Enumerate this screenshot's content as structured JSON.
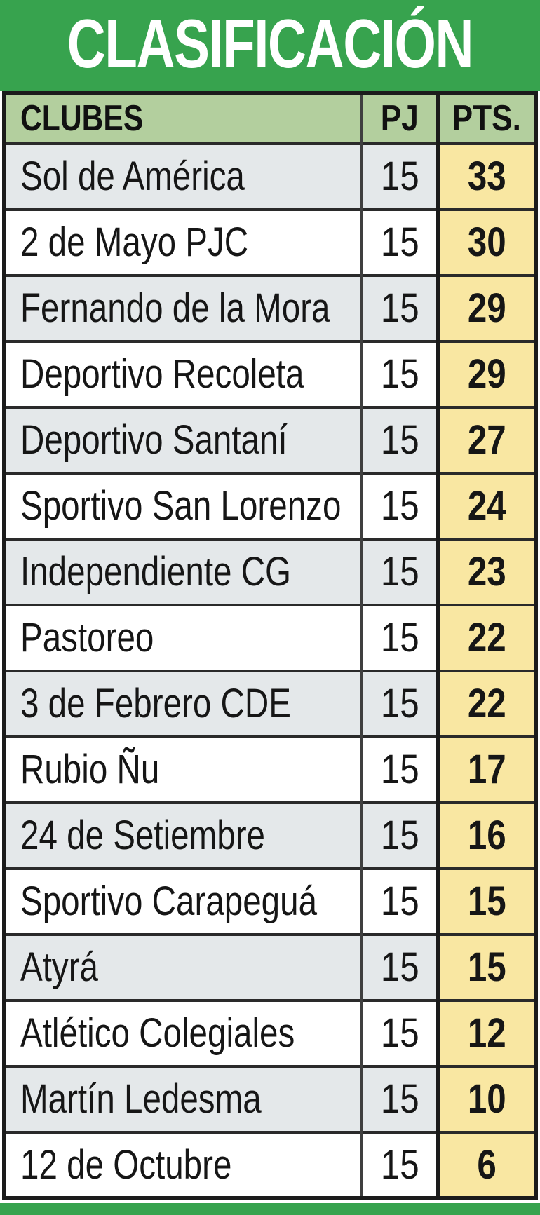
{
  "title": "CLASIFICACIÓN",
  "colors": {
    "header_green": "#37a34e",
    "column_header_green": "#b3cf9e",
    "row_alt_gray": "#e4e8ea",
    "row_white": "#ffffff",
    "pts_yellow": "#f9e7a2",
    "border_black": "#1b1b1b",
    "title_text": "#ffffff",
    "body_text": "#161616"
  },
  "chart_data": {
    "type": "table",
    "title": "CLASIFICACIÓN",
    "columns": [
      "CLUBES",
      "PJ",
      "PTS."
    ],
    "rows": [
      [
        "Sol de América",
        "15",
        "33"
      ],
      [
        "2 de Mayo PJC",
        "15",
        "30"
      ],
      [
        "Fernando de la Mora",
        "15",
        "29"
      ],
      [
        "Deportivo Recoleta",
        "15",
        "29"
      ],
      [
        "Deportivo Santaní",
        "15",
        "27"
      ],
      [
        "Sportivo San Lorenzo",
        "15",
        "24"
      ],
      [
        "Independiente CG",
        "15",
        "23"
      ],
      [
        "Pastoreo",
        "15",
        "22"
      ],
      [
        "3 de Febrero CDE",
        "15",
        "22"
      ],
      [
        "Rubio Ñu",
        "15",
        "17"
      ],
      [
        "24 de Setiembre",
        "15",
        "16"
      ],
      [
        "Sportivo Carapeguá",
        "15",
        "15"
      ],
      [
        "Atyrá",
        "15",
        "15"
      ],
      [
        "Atlético Colegiales",
        "15",
        "12"
      ],
      [
        "Martín Ledesma",
        "15",
        "10"
      ],
      [
        "12 de Octubre",
        "15",
        "6"
      ]
    ]
  }
}
